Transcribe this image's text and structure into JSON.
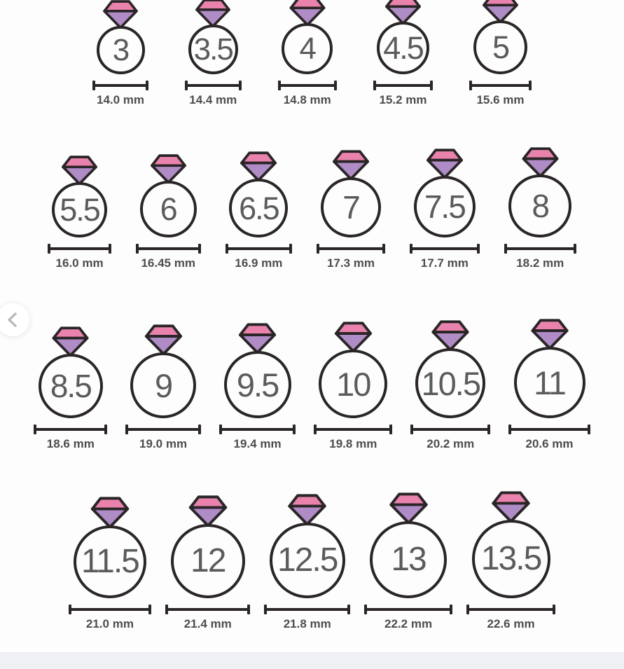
{
  "colors": {
    "outline": "#2a2526",
    "pink": "#e983ad",
    "lavender": "#b08cc7",
    "number": "#5a5b5d",
    "label": "#4c4d4f",
    "line": "#2a2526",
    "chevron": "#bcbcbc",
    "strip": "#eef0f3"
  },
  "icons": {
    "prev": "chevron-left-icon",
    "ring": "diamond-icon"
  },
  "rows": [
    {
      "rings": [
        {
          "size": "3",
          "diameter": "14.0 mm",
          "mm": 14.0
        },
        {
          "size": "3.5",
          "diameter": "14.4 mm",
          "mm": 14.4
        },
        {
          "size": "4",
          "diameter": "14.8 mm",
          "mm": 14.8
        },
        {
          "size": "4.5",
          "diameter": "15.2 mm",
          "mm": 15.2
        },
        {
          "size": "5",
          "diameter": "15.6 mm",
          "mm": 15.6
        }
      ]
    },
    {
      "rings": [
        {
          "size": "5.5",
          "diameter": "16.0 mm",
          "mm": 16.0
        },
        {
          "size": "6",
          "diameter": "16.45 mm",
          "mm": 16.45
        },
        {
          "size": "6.5",
          "diameter": "16.9 mm",
          "mm": 16.9
        },
        {
          "size": "7",
          "diameter": "17.3 mm",
          "mm": 17.3
        },
        {
          "size": "7.5",
          "diameter": "17.7 mm",
          "mm": 17.7
        },
        {
          "size": "8",
          "diameter": "18.2 mm",
          "mm": 18.2
        }
      ]
    },
    {
      "rings": [
        {
          "size": "8.5",
          "diameter": "18.6 mm",
          "mm": 18.6
        },
        {
          "size": "9",
          "diameter": "19.0 mm",
          "mm": 19.0
        },
        {
          "size": "9.5",
          "diameter": "19.4 mm",
          "mm": 19.4
        },
        {
          "size": "10",
          "diameter": "19.8 mm",
          "mm": 19.8
        },
        {
          "size": "10.5",
          "diameter": "20.2 mm",
          "mm": 20.2
        },
        {
          "size": "11",
          "diameter": "20.6 mm",
          "mm": 20.6
        }
      ]
    },
    {
      "rings": [
        {
          "size": "11.5",
          "diameter": "21.0 mm",
          "mm": 21.0
        },
        {
          "size": "12",
          "diameter": "21.4 mm",
          "mm": 21.4
        },
        {
          "size": "12.5",
          "diameter": "21.8 mm",
          "mm": 21.8
        },
        {
          "size": "13",
          "diameter": "22.2 mm",
          "mm": 22.2
        },
        {
          "size": "13.5",
          "diameter": "22.6 mm",
          "mm": 22.6
        }
      ]
    }
  ],
  "chart_data": {
    "type": "table",
    "columns": [
      "ring_size",
      "inner_diameter"
    ],
    "rows": [
      [
        "3",
        "14.0 mm"
      ],
      [
        "3.5",
        "14.4 mm"
      ],
      [
        "4",
        "14.8 mm"
      ],
      [
        "4.5",
        "15.2 mm"
      ],
      [
        "5",
        "15.6 mm"
      ],
      [
        "5.5",
        "16.0 mm"
      ],
      [
        "6",
        "16.45 mm"
      ],
      [
        "6.5",
        "16.9 mm"
      ],
      [
        "7",
        "17.3 mm"
      ],
      [
        "7.5",
        "17.7 mm"
      ],
      [
        "8",
        "18.2 mm"
      ],
      [
        "8.5",
        "18.6 mm"
      ],
      [
        "9",
        "19.0 mm"
      ],
      [
        "9.5",
        "19.4 mm"
      ],
      [
        "10",
        "19.8 mm"
      ],
      [
        "10.5",
        "20.2 mm"
      ],
      [
        "11",
        "20.6 mm"
      ],
      [
        "11.5",
        "21.0 mm"
      ],
      [
        "12",
        "21.4 mm"
      ],
      [
        "12.5",
        "21.8 mm"
      ],
      [
        "13",
        "22.2 mm"
      ],
      [
        "13.5",
        "22.6 mm"
      ]
    ]
  }
}
